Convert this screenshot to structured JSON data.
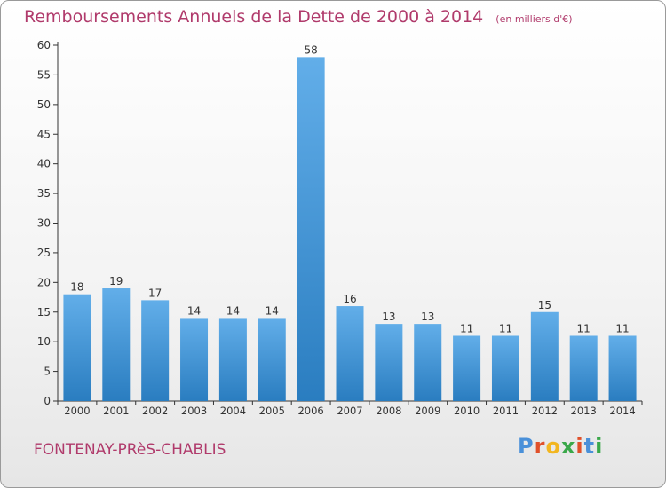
{
  "header": {
    "title": "Remboursements Annuels de la Dette de 2000 à 2014",
    "unit": "(en milliers d'€)"
  },
  "footer": {
    "city": "FONTENAY-PRèS-CHABLIS",
    "logo": "Proxiti"
  },
  "colors": {
    "title": "#b03a6b",
    "bar_top": "#62aee9",
    "bar_bottom": "#2a7dc0",
    "axis": "#333333",
    "logo_letters": [
      "#4a90d9",
      "#e0502a",
      "#f2b620",
      "#3aa84a",
      "#e0502a",
      "#4a90d9",
      "#3aa84a"
    ]
  },
  "chart_data": {
    "type": "bar",
    "title": "Remboursements Annuels de la Dette de 2000 à 2014",
    "subtitle": "(en milliers d'€)",
    "xlabel": "",
    "ylabel": "",
    "categories": [
      "2000",
      "2001",
      "2002",
      "2003",
      "2004",
      "2005",
      "2006",
      "2007",
      "2008",
      "2009",
      "2010",
      "2011",
      "2012",
      "2013",
      "2014"
    ],
    "values": [
      18,
      19,
      17,
      14,
      14,
      14,
      58,
      16,
      13,
      13,
      11,
      11,
      15,
      11,
      11
    ],
    "data_labels": [
      "18",
      "19",
      "17",
      "14",
      "14",
      "14",
      "58",
      "16",
      "13",
      "13",
      "11",
      "11",
      "15",
      "11",
      "11"
    ],
    "ylim": [
      0,
      60
    ],
    "yticks": [
      0,
      5,
      10,
      15,
      20,
      25,
      30,
      35,
      40,
      45,
      50,
      55,
      60
    ],
    "grid": false,
    "legend": "none"
  }
}
